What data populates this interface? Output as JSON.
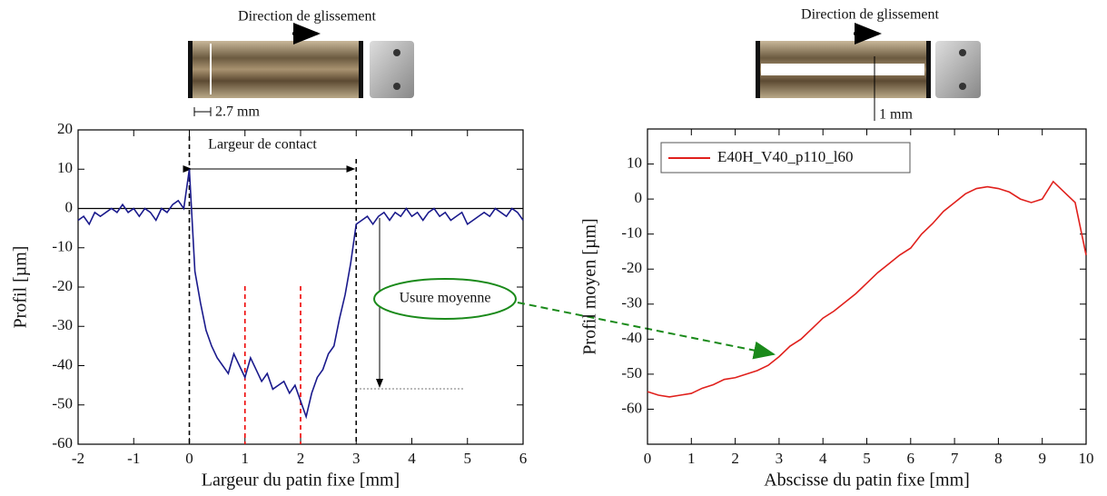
{
  "chart_data": [
    {
      "type": "line",
      "color": "#1a1a8c",
      "x_label": "Largeur du patin fixe [mm]",
      "y_label": "Profil [µm]",
      "annotations": {
        "direction": "Direction de glissement",
        "width": "2.7 mm",
        "contact": "Largeur de contact",
        "wear": "Usure moyenne"
      },
      "x": [
        -2,
        -1.9,
        -1.8,
        -1.7,
        -1.6,
        -1.5,
        -1.4,
        -1.3,
        -1.2,
        -1.1,
        -1,
        -0.9,
        -0.8,
        -0.7,
        -0.6,
        -0.5,
        -0.4,
        -0.3,
        -0.2,
        -0.1,
        0,
        0.1,
        0.2,
        0.3,
        0.4,
        0.5,
        0.6,
        0.7,
        0.8,
        0.9,
        1,
        1.1,
        1.2,
        1.3,
        1.4,
        1.5,
        1.6,
        1.7,
        1.8,
        1.9,
        2,
        2.1,
        2.2,
        2.3,
        2.4,
        2.5,
        2.6,
        2.7,
        2.8,
        2.9,
        3,
        3.1,
        3.2,
        3.3,
        3.4,
        3.5,
        3.6,
        3.7,
        3.8,
        3.9,
        4,
        4.1,
        4.2,
        4.3,
        4.4,
        4.5,
        4.6,
        4.7,
        4.8,
        4.9,
        5,
        5.1,
        5.2,
        5.3,
        5.4,
        5.5,
        5.6,
        5.7,
        5.8,
        5.9,
        6
      ],
      "values": [
        -3,
        -2,
        -4,
        -1,
        -2,
        -1,
        0,
        -1,
        1,
        -1,
        0,
        -2,
        0,
        -1,
        -3,
        0,
        -1,
        1,
        2,
        0,
        10,
        -16,
        -24,
        -31,
        -35,
        -38,
        -40,
        -42,
        -37,
        -40,
        -43,
        -38,
        -41,
        -44,
        -42,
        -46,
        -45,
        -44,
        -47,
        -45,
        -49,
        -53,
        -47,
        -43,
        -41,
        -37,
        -35,
        -28,
        -22,
        -14,
        -4,
        -3,
        -2,
        -4,
        -2,
        -1,
        -3,
        -1,
        -2,
        0,
        -2,
        -1,
        -3,
        -1,
        0,
        -2,
        -1,
        -3,
        -2,
        -1,
        -4,
        -3,
        -2,
        -1,
        -2,
        0,
        -1,
        -2,
        0,
        -1,
        -3
      ],
      "xlim": [
        -2,
        6
      ],
      "xticks": [
        -2,
        -1,
        0,
        1,
        2,
        3,
        4,
        5,
        6
      ],
      "ylim": [
        -60,
        20
      ],
      "yticks": [
        -60,
        -50,
        -40,
        -30,
        -20,
        -10,
        0,
        10,
        20
      ]
    },
    {
      "type": "line",
      "x_label": "Abscisse du patin fixe [mm]",
      "y_label": "Profil moyen [µm]",
      "annotations": {
        "direction": "Direction de glissement",
        "width": "1 mm"
      },
      "x": [
        0,
        0.25,
        0.5,
        0.75,
        1,
        1.25,
        1.5,
        1.75,
        2,
        2.25,
        2.5,
        2.75,
        3,
        3.25,
        3.5,
        3.75,
        4,
        4.25,
        4.5,
        4.75,
        5,
        5.25,
        5.5,
        5.75,
        6,
        6.25,
        6.5,
        6.75,
        7,
        7.25,
        7.5,
        7.75,
        8,
        8.25,
        8.5,
        8.75,
        9,
        9.25,
        9.5,
        9.75,
        10
      ],
      "series": [
        {
          "name": "E40H_V40_p110_l60",
          "color": "#e0201c",
          "values": [
            -55,
            -56,
            -56.5,
            -56,
            -55.5,
            -54,
            -53,
            -51.5,
            -51,
            -50,
            -49,
            -47.5,
            -45,
            -42,
            -40,
            -37,
            -34,
            -32,
            -29.5,
            -27,
            -24,
            -21,
            -18.5,
            -16,
            -14,
            -10,
            -7,
            -3.5,
            -1,
            1.5,
            3,
            3.5,
            3,
            2,
            0,
            -1,
            0,
            5,
            2,
            -1,
            -16
          ]
        }
      ],
      "xlim": [
        0,
        10
      ],
      "xticks": [
        0,
        1,
        2,
        3,
        4,
        5,
        6,
        7,
        8,
        9,
        10
      ],
      "ylim": [
        -70,
        20
      ],
      "yticks": [
        -60,
        -50,
        -40,
        -30,
        -20,
        -10,
        0,
        10
      ]
    }
  ]
}
